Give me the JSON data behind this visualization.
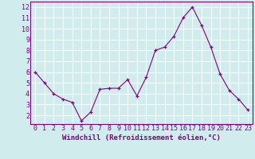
{
  "x": [
    0,
    1,
    2,
    3,
    4,
    5,
    6,
    7,
    8,
    9,
    10,
    11,
    12,
    13,
    14,
    15,
    16,
    17,
    18,
    19,
    20,
    21,
    22,
    23
  ],
  "y": [
    6.0,
    5.0,
    4.0,
    3.5,
    3.2,
    1.5,
    2.3,
    4.4,
    4.5,
    4.5,
    5.3,
    3.8,
    5.5,
    8.0,
    8.3,
    9.3,
    11.0,
    12.0,
    10.3,
    8.3,
    5.8,
    4.3,
    3.5,
    2.5
  ],
  "line_color": "#800080",
  "marker": "+",
  "bg_color": "#d0ecec",
  "grid_color": "#ffffff",
  "xlabel": "Windchill (Refroidissement éolien,°C)",
  "xlim": [
    -0.5,
    23.5
  ],
  "ylim": [
    1.2,
    12.5
  ],
  "yticks": [
    2,
    3,
    4,
    5,
    6,
    7,
    8,
    9,
    10,
    11,
    12
  ],
  "xticks": [
    0,
    1,
    2,
    3,
    4,
    5,
    6,
    7,
    8,
    9,
    10,
    11,
    12,
    13,
    14,
    15,
    16,
    17,
    18,
    19,
    20,
    21,
    22,
    23
  ],
  "label_color": "#800080",
  "tick_color": "#800080",
  "font_size": 6.0,
  "xlabel_font_size": 6.5
}
